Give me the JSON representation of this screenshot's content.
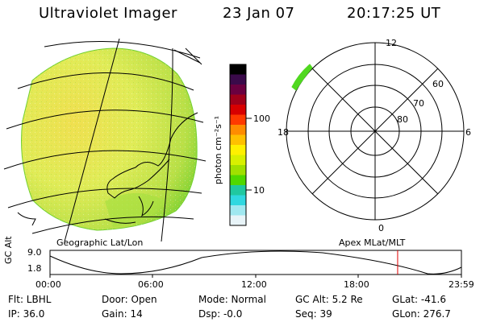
{
  "header": {
    "instrument": "Ultraviolet Imager",
    "date": "23 Jan 07",
    "time": "20:17:25 UT"
  },
  "colorbar": {
    "unit_label": "photon cm⁻²s⁻¹",
    "tick_100": "100",
    "tick_10": "10",
    "colors_top_to_bottom": [
      "#000000",
      "#3a0a4a",
      "#6a0040",
      "#a0001a",
      "#d80000",
      "#ff3a00",
      "#ff8c00",
      "#ffc000",
      "#fff000",
      "#d8f000",
      "#a0e000",
      "#50d800",
      "#20c8a0",
      "#30d8e0",
      "#a0e8f0",
      "#e8f4f8"
    ]
  },
  "maps": {
    "left_label": "Geographic Lat/Lon",
    "right_label": "Apex MLat/MLT"
  },
  "polar": {
    "mlt_top": "12",
    "mlt_left": "18",
    "mlt_right": "6",
    "mlt_bottom": "0",
    "lat_60": "60",
    "lat_70": "70",
    "lat_80": "80"
  },
  "altitude_plot": {
    "ylabel": "GC Alt",
    "ymax": "9.0",
    "ymin": "1.8",
    "xticks": [
      "00:00",
      "06:00",
      "12:00",
      "18:00",
      "23:59"
    ],
    "current_time_fraction": 0.845
  },
  "info": {
    "flt": "Flt: LBHL",
    "ip": "IP: 36.0",
    "door": "Door: Open",
    "gain": "Gain: 14",
    "mode": "Mode: Normal",
    "dsp": "Dsp:   -0.0",
    "gcalt": "GC Alt: 5.2 Re",
    "seq": "Seq: 39",
    "glat": "GLat: -41.6",
    "glon": "GLon: 276.7"
  },
  "colors": {
    "disk_fill": "#d8ee60",
    "aurora": "#50d820",
    "marker": "#e00000"
  }
}
